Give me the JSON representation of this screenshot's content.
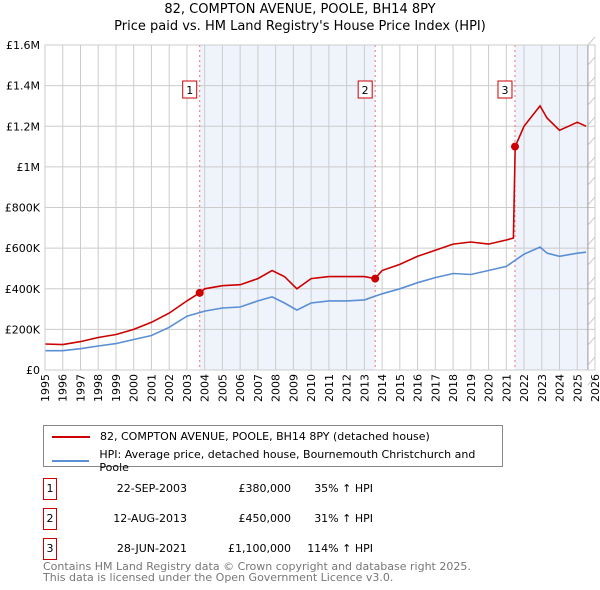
{
  "title_line1": "82, COMPTON AVENUE, POOLE, BH14 8PY",
  "title_line2": "Price paid vs. HM Land Registry's House Price Index (HPI)",
  "chart_data": {
    "type": "line",
    "ylim": [
      0,
      1600000
    ],
    "xlim": [
      1995,
      2026
    ],
    "y_ticks": [
      {
        "v": 0,
        "label": "£0"
      },
      {
        "v": 200000,
        "label": "£200K"
      },
      {
        "v": 400000,
        "label": "£400K"
      },
      {
        "v": 600000,
        "label": "£600K"
      },
      {
        "v": 800000,
        "label": "£800K"
      },
      {
        "v": 1000000,
        "label": "£1M"
      },
      {
        "v": 1200000,
        "label": "£1.2M"
      },
      {
        "v": 1400000,
        "label": "£1.4M"
      },
      {
        "v": 1600000,
        "label": "£1.6M"
      }
    ],
    "x_ticks": [
      "1995",
      "1996",
      "1997",
      "1998",
      "1999",
      "2000",
      "2001",
      "2002",
      "2003",
      "2004",
      "2005",
      "2006",
      "2007",
      "2008",
      "2009",
      "2010",
      "2011",
      "2012",
      "2013",
      "2014",
      "2015",
      "2016",
      "2017",
      "2018",
      "2019",
      "2020",
      "2021",
      "2022",
      "2023",
      "2024",
      "2025",
      "2026"
    ],
    "grid": true,
    "series": [
      {
        "name": "82, COMPTON AVENUE, POOLE, BH14 8PY (detached house)",
        "color": "#cc0000",
        "x": [
          1995,
          1996,
          1997,
          1998,
          1999,
          2000,
          2001,
          2002,
          2003,
          2003.72,
          2004,
          2005,
          2006,
          2007,
          2007.8,
          2008.5,
          2009.2,
          2010,
          2011,
          2012,
          2013,
          2013.6,
          2014,
          2015,
          2016,
          2017,
          2018,
          2019,
          2020,
          2021,
          2021.4,
          2021.5,
          2022,
          2022.9,
          2023.3,
          2024,
          2024.5,
          2025,
          2025.5
        ],
        "y": [
          128000,
          125000,
          140000,
          160000,
          175000,
          200000,
          235000,
          280000,
          340000,
          380000,
          400000,
          415000,
          420000,
          450000,
          490000,
          460000,
          400000,
          450000,
          460000,
          460000,
          460000,
          450000,
          490000,
          520000,
          560000,
          590000,
          620000,
          630000,
          620000,
          640000,
          650000,
          1100000,
          1200000,
          1300000,
          1240000,
          1180000,
          1200000,
          1220000,
          1200000
        ]
      },
      {
        "name": "HPI: Average price, detached house, Bournemouth Christchurch and Poole",
        "color": "#5b8fd4",
        "x": [
          1995,
          1996,
          1997,
          1998,
          1999,
          2000,
          2001,
          2002,
          2003,
          2004,
          2005,
          2006,
          2007,
          2007.8,
          2008.5,
          2009.2,
          2010,
          2011,
          2012,
          2013,
          2014,
          2015,
          2016,
          2017,
          2018,
          2019,
          2020,
          2021,
          2022,
          2022.9,
          2023.3,
          2024,
          2025,
          2025.5
        ],
        "y": [
          95000,
          95000,
          105000,
          118000,
          130000,
          150000,
          170000,
          210000,
          265000,
          290000,
          305000,
          310000,
          340000,
          360000,
          330000,
          295000,
          330000,
          340000,
          340000,
          345000,
          375000,
          400000,
          430000,
          455000,
          475000,
          470000,
          490000,
          510000,
          570000,
          605000,
          575000,
          560000,
          575000,
          580000
        ]
      }
    ],
    "sales": [
      {
        "n": "1",
        "x": 2003.72,
        "y": 380000,
        "date": "22-SEP-2003",
        "price": "£380,000",
        "hpi": "35% ↑ HPI"
      },
      {
        "n": "2",
        "x": 2013.61,
        "y": 450000,
        "date": "12-AUG-2013",
        "price": "£450,000",
        "hpi": "31% ↑ HPI"
      },
      {
        "n": "3",
        "x": 2021.49,
        "y": 1100000,
        "date": "28-JUN-2021",
        "price": "£1,100,000",
        "hpi": "114% ↑ HPI"
      }
    ]
  },
  "legend": {
    "red": "82, COMPTON AVENUE, POOLE, BH14 8PY (detached house)",
    "blue": "HPI: Average price, detached house, Bournemouth Christchurch and Poole"
  },
  "footer1": "Contains HM Land Registry data © Crown copyright and database right 2025.",
  "footer2": "This data is licensed under the Open Government Licence v3.0."
}
